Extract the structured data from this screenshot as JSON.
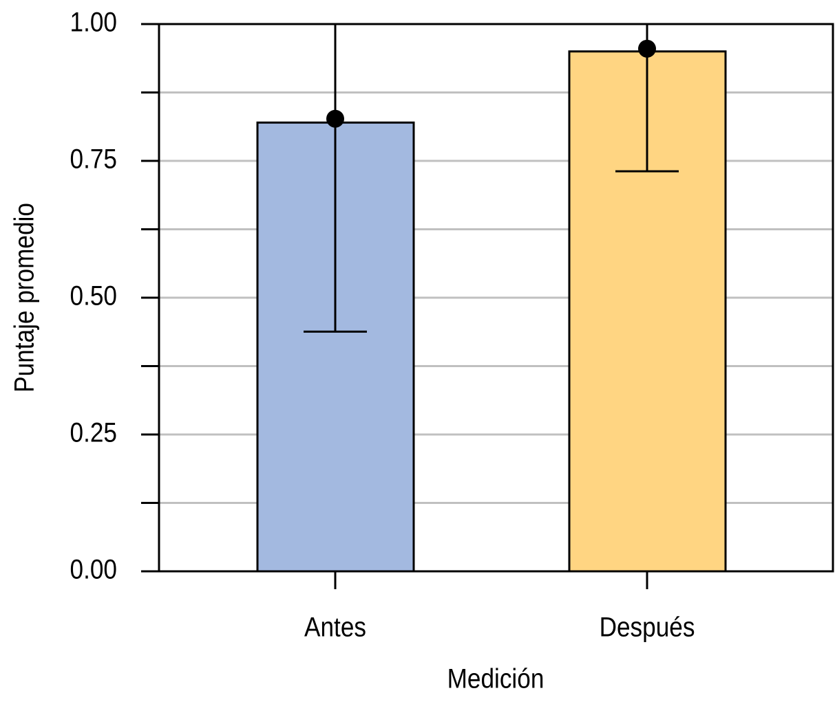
{
  "chart_data": {
    "type": "bar",
    "x_label": "Medición",
    "y_label": "Puntaje promedio",
    "categories": [
      "Antes",
      "Después"
    ],
    "values": [
      0.82,
      0.95
    ],
    "points": [
      0.827,
      0.955
    ],
    "ci_low": [
      0.438,
      0.731
    ],
    "ci_high": [
      1.0,
      1.0
    ],
    "colors": [
      "#a3b9e0",
      "#ffd582"
    ],
    "ylim": [
      0,
      1
    ],
    "yticks": [
      {
        "value": 0,
        "label": "0.00"
      },
      {
        "value": 0.25,
        "label": "0.25"
      },
      {
        "value": 0.5,
        "label": "0.50"
      },
      {
        "value": 0.75,
        "label": "0.75"
      },
      {
        "value": 1,
        "label": "1.00"
      }
    ],
    "yminorticks": [
      0.125,
      0.375,
      0.625,
      0.875
    ],
    "grid": true
  }
}
